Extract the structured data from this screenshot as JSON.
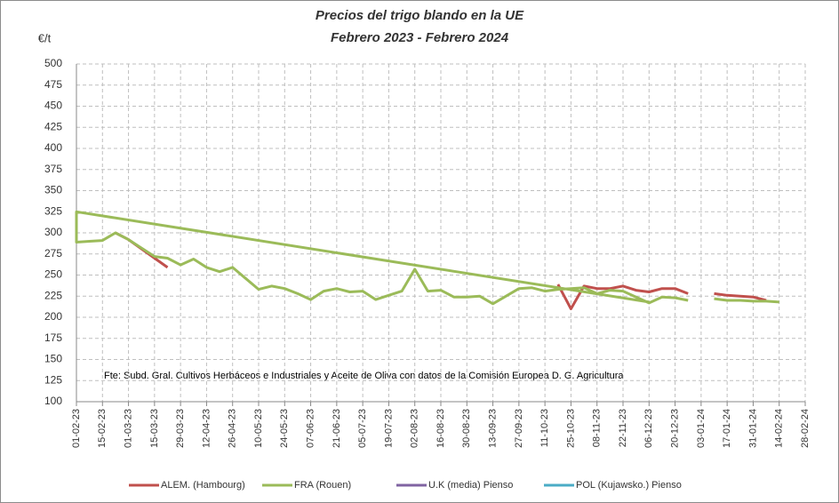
{
  "chart_data": {
    "type": "line",
    "title": "Precios del trigo blando en la UE",
    "subtitle": "Febrero 2023 - Febrero 2024",
    "y_label": "€/t",
    "annotation": "Fte: Subd. Gral. Cultivos Herbáceos e Industriales y Aceite de Oliva con  datos de la Comisión Europea D.  G. Agricultura",
    "xlim": [
      "01-02-23",
      "28-02-24"
    ],
    "xticks": [
      "01-02-23",
      "15-02-23",
      "01-03-23",
      "15-03-23",
      "29-03-23",
      "12-04-23",
      "26-04-23",
      "10-05-23",
      "24-05-23",
      "07-06-23",
      "21-06-23",
      "05-07-23",
      "19-07-23",
      "02-08-23",
      "16-08-23",
      "30-08-23",
      "13-09-23",
      "27-09-23",
      "11-10-23",
      "25-10-23",
      "08-11-23",
      "22-11-23",
      "06-12-23",
      "20-12-23",
      "03-01-24",
      "17-01-24",
      "31-01-24",
      "14-02-24",
      "28-02-24"
    ],
    "ylim": [
      100,
      500
    ],
    "yticks": [
      100,
      125,
      150,
      175,
      200,
      225,
      250,
      275,
      300,
      325,
      350,
      375,
      400,
      425,
      450,
      475,
      500
    ],
    "grid": true,
    "legend": "bottom",
    "series": [
      {
        "name": "ALEM. (Hambourg)",
        "color": "#c0504d",
        "x": [
          "22-02-23",
          "01-03-23",
          "08-03-23",
          "15-03-23",
          "22-03-23",
          null,
          "18-10-23",
          "25-10-23",
          "01-11-23",
          "08-11-23",
          "15-11-23",
          "22-11-23",
          "29-11-23",
          "06-12-23",
          "13-12-23",
          "20-12-23",
          "27-12-23",
          null,
          "10-01-24",
          "17-01-24",
          "24-01-24",
          "31-01-24",
          "07-02-24"
        ],
        "values": [
          300,
          292,
          281,
          270,
          259,
          null,
          239,
          210,
          237,
          234,
          234,
          237,
          232,
          230,
          234,
          234,
          228,
          null,
          228,
          226,
          225,
          224,
          220
        ]
      },
      {
        "name": "FRA (Rouen)",
        "color": "#9bbb59",
        "x": [
          "06-12-23",
          "01-02-23",
          "01-02-23",
          "08-02-23",
          "15-02-23",
          "22-02-23",
          "01-03-23",
          "08-03-23",
          "15-03-23",
          "22-03-23",
          "29-03-23",
          "05-04-23",
          "12-04-23",
          "19-04-23",
          "26-04-23",
          "03-05-23",
          "10-05-23",
          "17-05-23",
          "24-05-23",
          "31-05-23",
          "07-06-23",
          "14-06-23",
          "21-06-23",
          "28-06-23",
          "05-07-23",
          "12-07-23",
          "19-07-23",
          "26-07-23",
          "02-08-23",
          "09-08-23",
          "16-08-23",
          "23-08-23",
          "30-08-23",
          "06-09-23",
          "13-09-23",
          "20-09-23",
          "27-09-23",
          "04-10-23",
          "11-10-23",
          "18-10-23",
          "25-10-23",
          "01-11-23",
          "08-11-23",
          "15-11-23",
          "22-11-23",
          "29-11-23",
          "06-12-23",
          "13-12-23",
          "20-12-23",
          "27-12-23",
          null,
          "10-01-24",
          "17-01-24",
          "24-01-24",
          "31-01-24",
          "07-02-24",
          "14-02-24"
        ],
        "values": [
          218,
          325,
          289,
          290,
          291,
          300,
          292,
          282,
          272,
          270,
          262,
          269,
          259,
          254,
          259,
          246,
          233,
          237,
          234,
          228,
          221,
          231,
          234,
          230,
          231,
          221,
          226,
          231,
          257,
          231,
          232,
          224,
          224,
          225,
          216,
          225,
          234,
          235,
          231,
          233,
          234,
          235,
          228,
          232,
          231,
          224,
          217,
          224,
          223,
          220,
          null,
          222,
          220,
          220,
          219,
          219,
          218
        ]
      },
      {
        "name": "U.K (media) Pienso",
        "color": "#8064a2",
        "x": [],
        "values": []
      },
      {
        "name": "POL (Kujawsko.) Pienso",
        "color": "#4bacc6",
        "x": [],
        "values": []
      }
    ]
  }
}
